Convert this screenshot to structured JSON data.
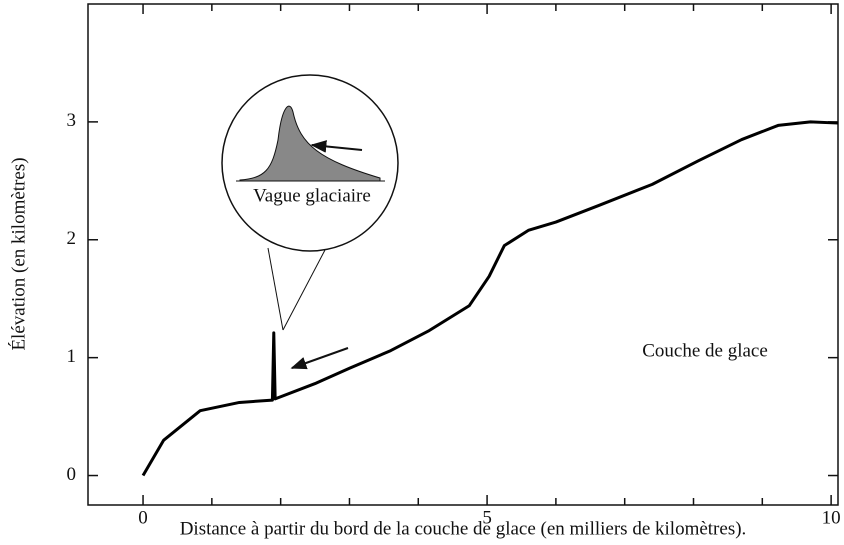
{
  "chart_data": {
    "type": "line",
    "xlabel": "Distance à partir du bord de la couche de glace (en milliers de kilomètres).",
    "ylabel": "Élévation (en kilomètres)",
    "annotations": [
      "Vague glaciaire",
      "Couche de glace"
    ],
    "xlim": [
      -0.8,
      10.1
    ],
    "ylim": [
      -0.25,
      4
    ],
    "xticks": [
      0,
      5,
      10
    ],
    "xminorticks": [
      1,
      2,
      3,
      4,
      6,
      7,
      8,
      9
    ],
    "yticks": [
      0,
      1,
      2,
      3
    ],
    "series": [
      {
        "color": "#000000",
        "x": [
          0,
          0.3,
          0.83,
          1.4,
          1.88,
          1.9,
          1.92,
          2.5,
          3.0,
          3.6,
          4.16,
          4.74,
          5.03,
          5.25,
          5.6,
          6.0,
          6.62,
          7.4,
          8.07,
          8.7,
          9.23,
          9.7,
          10.1
        ],
        "values": [
          0,
          0.3,
          0.55,
          0.62,
          0.64,
          1.21,
          0.65,
          0.78,
          0.91,
          1.06,
          1.23,
          1.44,
          1.69,
          1.95,
          2.08,
          2.15,
          2.29,
          2.47,
          2.67,
          2.85,
          2.97,
          3.0,
          2.99
        ]
      }
    ]
  }
}
